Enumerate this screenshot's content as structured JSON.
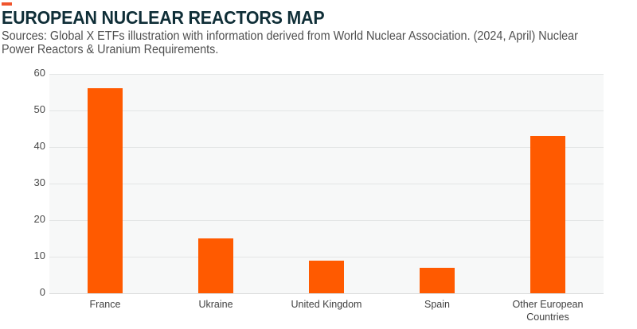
{
  "header": {
    "title": "EUROPEAN NUCLEAR REACTORS MAP",
    "subtitle": "Sources: Global X ETFs illustration with information derived from World Nuclear Association. (2024, April) Nuclear Power Reactors & Uranium Requirements.",
    "accent_color": "#f0542d"
  },
  "chart_data": {
    "type": "bar",
    "title": "EUROPEAN NUCLEAR REACTORS MAP",
    "categories": [
      "France",
      "Ukraine",
      "United Kingdom",
      "Spain",
      "Other European Countries"
    ],
    "values": [
      56,
      15,
      9,
      7,
      43
    ],
    "xlabel": "",
    "ylabel": "",
    "ylim": [
      0,
      60
    ],
    "yticks": [
      0,
      10,
      20,
      30,
      40,
      50,
      60
    ],
    "grid": true,
    "legend": null,
    "bar_color": "#ff5a00"
  },
  "axis": {
    "yticks": [
      "60",
      "50",
      "40",
      "30",
      "20",
      "10",
      "0"
    ],
    "xlabels": [
      "France",
      "Ukraine",
      "United Kingdom",
      "Spain",
      "Other European\nCountries"
    ]
  }
}
